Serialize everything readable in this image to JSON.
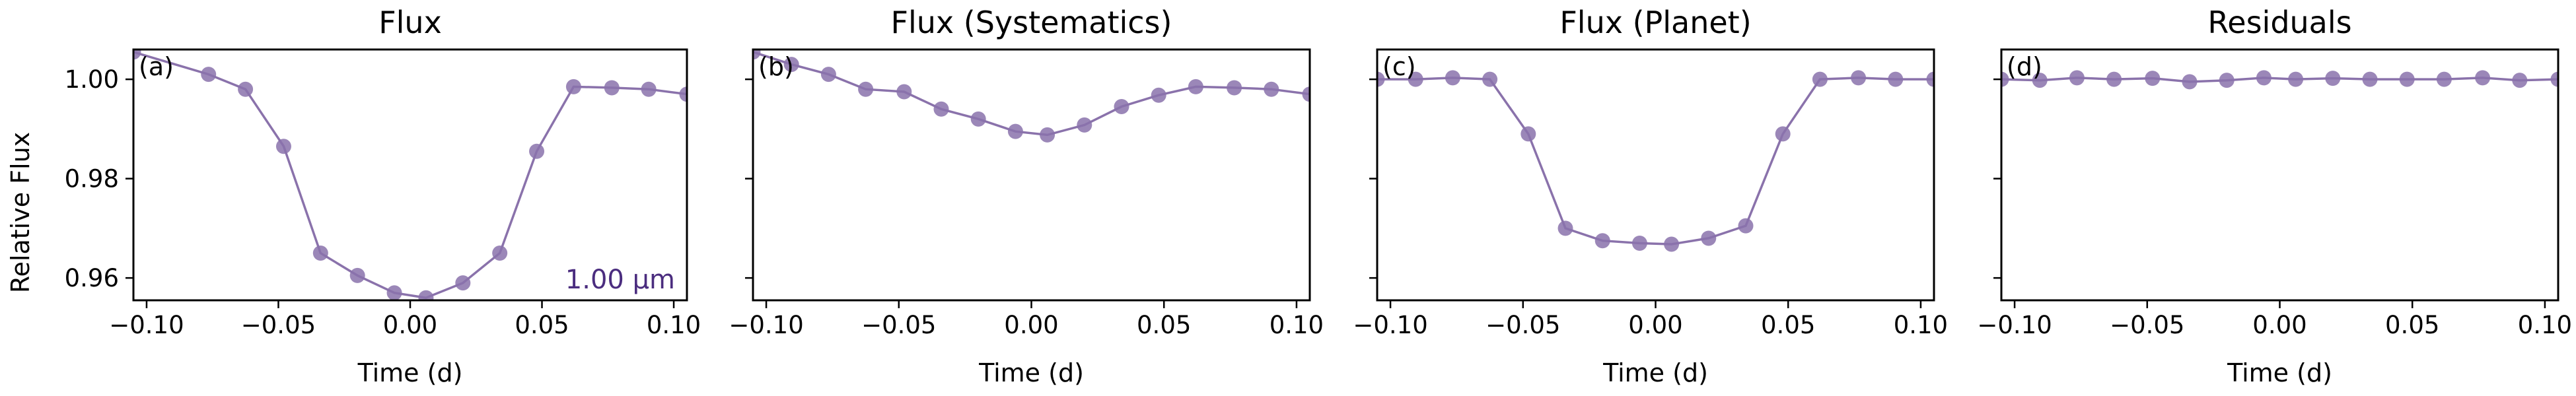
{
  "figure": {
    "ylabel": "Relative Flux",
    "wavelength_label": "1.00 µm",
    "colors": {
      "series": "#8a72ab",
      "wavelength_text": "#4b2d7f",
      "axes": "#000000"
    }
  },
  "chart_data": [
    {
      "type": "line",
      "title": "Flux",
      "panel_label": "(a)",
      "xlabel": "Time (d)",
      "ylabel": "Relative Flux",
      "xlim": [
        -0.105,
        0.105
      ],
      "ylim": [
        0.9555,
        1.006
      ],
      "xticks": [
        -0.1,
        -0.05,
        0.0,
        0.05,
        0.1
      ],
      "xtick_labels": [
        "−0.10",
        "−0.05",
        "0.00",
        "0.05",
        "0.10"
      ],
      "yticks": [
        0.96,
        0.98,
        1.0
      ],
      "ytick_labels": [
        "0.96",
        "0.98",
        "1.00"
      ],
      "series": [
        {
          "x": [
            -0.105,
            -0.0765,
            -0.0625,
            -0.048,
            -0.034,
            -0.02,
            -0.006,
            0.006,
            0.02,
            0.034,
            0.048,
            0.062,
            0.0765,
            0.0905,
            0.105
          ],
          "y": [
            1.0055,
            1.001,
            0.998,
            0.9865,
            0.965,
            0.9605,
            0.957,
            0.956,
            0.959,
            0.965,
            0.9855,
            0.9985,
            0.9983,
            0.998,
            0.997
          ]
        }
      ]
    },
    {
      "type": "line",
      "title": "Flux (Systematics)",
      "panel_label": "(b)",
      "xlabel": "Time (d)",
      "xlim": [
        -0.105,
        0.105
      ],
      "ylim": [
        0.9555,
        1.006
      ],
      "xticks": [
        -0.1,
        -0.05,
        0.0,
        0.05,
        0.1
      ],
      "xtick_labels": [
        "−0.10",
        "−0.05",
        "0.00",
        "0.05",
        "0.10"
      ],
      "yticks": [
        0.96,
        0.98,
        1.0
      ],
      "series": [
        {
          "x": [
            -0.105,
            -0.0905,
            -0.0765,
            -0.0625,
            -0.048,
            -0.034,
            -0.02,
            -0.006,
            0.006,
            0.02,
            0.034,
            0.048,
            0.062,
            0.0765,
            0.0905,
            0.105
          ],
          "y": [
            1.0055,
            1.003,
            1.001,
            0.998,
            0.9975,
            0.994,
            0.992,
            0.9895,
            0.9888,
            0.9908,
            0.9945,
            0.9968,
            0.9985,
            0.9983,
            0.998,
            0.997
          ]
        }
      ]
    },
    {
      "type": "line",
      "title": "Flux (Planet)",
      "panel_label": "(c)",
      "xlabel": "Time (d)",
      "xlim": [
        -0.105,
        0.105
      ],
      "ylim": [
        0.9555,
        1.006
      ],
      "xticks": [
        -0.1,
        -0.05,
        0.0,
        0.05,
        0.1
      ],
      "xtick_labels": [
        "−0.10",
        "−0.05",
        "0.00",
        "0.05",
        "0.10"
      ],
      "yticks": [
        0.96,
        0.98,
        1.0
      ],
      "series": [
        {
          "x": [
            -0.105,
            -0.0905,
            -0.0765,
            -0.0625,
            -0.048,
            -0.034,
            -0.02,
            -0.006,
            0.006,
            0.02,
            0.034,
            0.048,
            0.062,
            0.0765,
            0.0905,
            0.105
          ],
          "y": [
            1.0,
            1.0,
            1.0003,
            1.0,
            0.989,
            0.97,
            0.9675,
            0.967,
            0.9668,
            0.968,
            0.9705,
            0.989,
            1.0,
            1.0003,
            1.0,
            1.0
          ]
        }
      ]
    },
    {
      "type": "line",
      "title": "Residuals",
      "panel_label": "(d)",
      "xlabel": "Time (d)",
      "xlim": [
        -0.105,
        0.105
      ],
      "ylim": [
        0.9555,
        1.006
      ],
      "xticks": [
        -0.1,
        -0.05,
        0.0,
        0.05,
        0.1
      ],
      "xtick_labels": [
        "−0.10",
        "−0.05",
        "0.00",
        "0.05",
        "0.10"
      ],
      "yticks": [
        0.96,
        0.98,
        1.0
      ],
      "series": [
        {
          "x": [
            -0.105,
            -0.0905,
            -0.0765,
            -0.0625,
            -0.048,
            -0.034,
            -0.02,
            -0.006,
            0.006,
            0.02,
            0.034,
            0.048,
            0.062,
            0.0765,
            0.0905,
            0.105
          ],
          "y": [
            1.0,
            0.9998,
            1.0003,
            1.0,
            1.0002,
            0.9995,
            0.9998,
            1.0003,
            1.0,
            1.0002,
            1.0,
            1.0,
            1.0,
            1.0003,
            0.9998,
            1.0
          ]
        }
      ]
    }
  ]
}
